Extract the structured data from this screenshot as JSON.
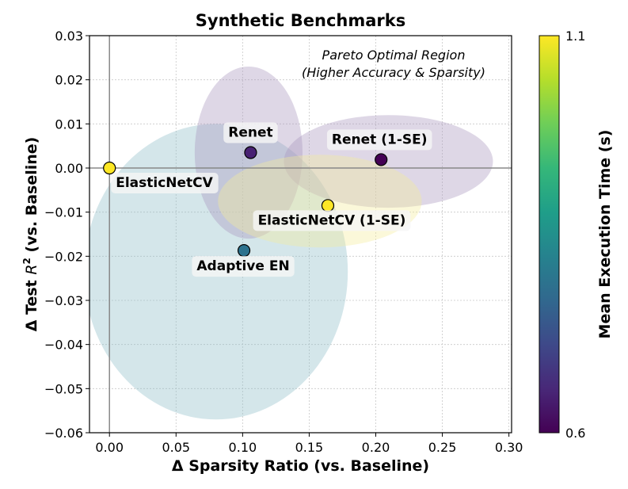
{
  "chart_data": {
    "type": "scatter",
    "title": "Synthetic Benchmarks",
    "xlabel": "Δ Sparsity Ratio (vs. Baseline)",
    "ylabel_prefix": "Δ Test ",
    "ylabel_var": "R",
    "ylabel_sup": "2",
    "ylabel_suffix": " (vs. Baseline)",
    "xlim": [
      -0.015,
      0.302
    ],
    "ylim": [
      -0.06,
      0.03
    ],
    "xticks": [
      "0.00",
      "0.05",
      "0.10",
      "0.15",
      "0.20",
      "0.25",
      "0.30"
    ],
    "xtick_values": [
      0.0,
      0.05,
      0.1,
      0.15,
      0.2,
      0.25,
      0.3
    ],
    "yticks": [
      "0.03",
      "0.02",
      "0.01",
      "0.00",
      "−0.01",
      "−0.02",
      "−0.03",
      "−0.04",
      "−0.05",
      "−0.06"
    ],
    "ytick_values": [
      0.03,
      0.02,
      0.01,
      0.0,
      -0.01,
      -0.02,
      -0.03,
      -0.04,
      -0.05,
      -0.06
    ],
    "grid": true,
    "reference_lines": {
      "x": 0.0,
      "y": 0.0
    },
    "points": [
      {
        "name": "ElasticNetCV",
        "x": 0.0,
        "y": 0.0,
        "time": 1.1,
        "color": "#fde725"
      },
      {
        "name": "Renet",
        "x": 0.106,
        "y": 0.0035,
        "time": 0.65,
        "color": "#482173"
      },
      {
        "name": "Renet (1-SE)",
        "x": 0.204,
        "y": 0.0019,
        "time": 0.61,
        "color": "#440154"
      },
      {
        "name": "ElasticNetCV (1-SE)",
        "x": 0.164,
        "y": -0.0085,
        "time": 1.08,
        "color": "#fde725"
      },
      {
        "name": "Adaptive EN",
        "x": 0.101,
        "y": -0.0187,
        "time": 0.83,
        "color": "#2c728e"
      }
    ],
    "ellipses": [
      {
        "cx": 0.08,
        "cy": -0.0235,
        "rx": 0.099,
        "ry": 0.0335,
        "color": "#8fbcc8"
      },
      {
        "cx": 0.1045,
        "cy": 0.0035,
        "rx": 0.0405,
        "ry": 0.0195,
        "color": "#a996be"
      },
      {
        "cx": 0.2095,
        "cy": 0.0015,
        "rx": 0.0785,
        "ry": 0.0105,
        "color": "#a996be"
      },
      {
        "cx": 0.158,
        "cy": -0.0075,
        "rx": 0.0765,
        "ry": 0.0105,
        "color": "#f4ed9a"
      }
    ],
    "annotation": [
      "Pareto Optimal Region",
      "(Higher Accuracy & Sparsity)"
    ],
    "colorbar": {
      "label": "Mean Execution Time (s)",
      "min_label": "0.6",
      "max_label": "1.1",
      "colormap": "viridis",
      "stops": [
        "#440154",
        "#482878",
        "#3e4989",
        "#31688e",
        "#26828e",
        "#1f9e89",
        "#35b779",
        "#6ece58",
        "#b5de2b",
        "#fde725"
      ]
    }
  }
}
